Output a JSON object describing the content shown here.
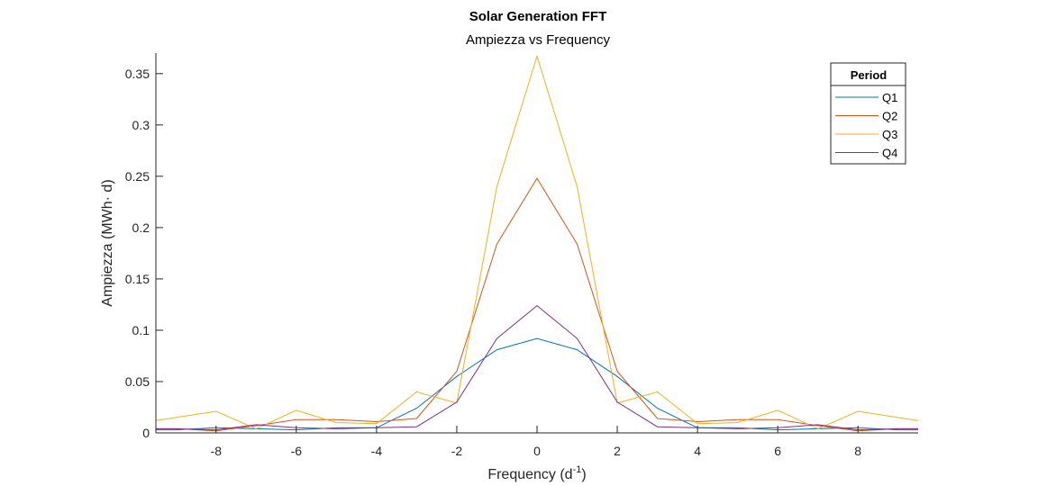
{
  "chart_data": {
    "type": "line",
    "title": "Solar Generation FFT",
    "subtitle": "Ampiezza vs Frequency",
    "xlabel_main": "Frequency (d",
    "xlabel_sup": "-1",
    "xlabel_close": ")",
    "ylabel": "Ampiezza (MWh· d)",
    "xlim": [
      -9.5,
      9.5
    ],
    "ylim": [
      0,
      0.37
    ],
    "xticks": [
      -8,
      -6,
      -4,
      -2,
      0,
      2,
      4,
      6,
      8
    ],
    "yticks": [
      0,
      0.05,
      0.1,
      0.15,
      0.2,
      0.25,
      0.3,
      0.35
    ],
    "ytick_labels": [
      "0",
      "0.05",
      "0.1",
      "0.15",
      "0.2",
      "0.25",
      "0.3",
      "0.35"
    ],
    "legend": {
      "title": "Period",
      "position": "top-right"
    },
    "x": [
      -9.5,
      -9,
      -8,
      -7,
      -6,
      -5,
      -4,
      -3,
      -2,
      -1,
      0,
      1,
      2,
      3,
      4,
      5,
      6,
      7,
      8,
      9,
      9.5
    ],
    "series": [
      {
        "name": "Q1",
        "color": "#0072BD",
        "values": [
          0.003,
          0.003,
          0.005,
          0.004,
          0.003,
          0.005,
          0.005,
          0.024,
          0.055,
          0.081,
          0.092,
          0.081,
          0.055,
          0.024,
          0.005,
          0.005,
          0.003,
          0.004,
          0.005,
          0.003,
          0.003
        ]
      },
      {
        "name": "Q2",
        "color": "#D95319",
        "values": [
          0.004,
          0.004,
          0.002,
          0.007,
          0.013,
          0.013,
          0.011,
          0.014,
          0.06,
          0.184,
          0.248,
          0.184,
          0.06,
          0.014,
          0.011,
          0.013,
          0.013,
          0.007,
          0.002,
          0.004,
          0.004
        ]
      },
      {
        "name": "Q3",
        "color": "#EDB120",
        "values": [
          0.012,
          0.015,
          0.021,
          0.004,
          0.022,
          0.01,
          0.009,
          0.04,
          0.029,
          0.24,
          0.367,
          0.24,
          0.029,
          0.04,
          0.009,
          0.01,
          0.022,
          0.004,
          0.021,
          0.015,
          0.012
        ]
      },
      {
        "name": "Q4",
        "color": "#7E2F8E",
        "values": [
          0.004,
          0.004,
          0.003,
          0.008,
          0.005,
          0.004,
          0.005,
          0.006,
          0.03,
          0.092,
          0.124,
          0.092,
          0.03,
          0.006,
          0.005,
          0.004,
          0.005,
          0.008,
          0.003,
          0.004,
          0.004
        ]
      }
    ]
  }
}
